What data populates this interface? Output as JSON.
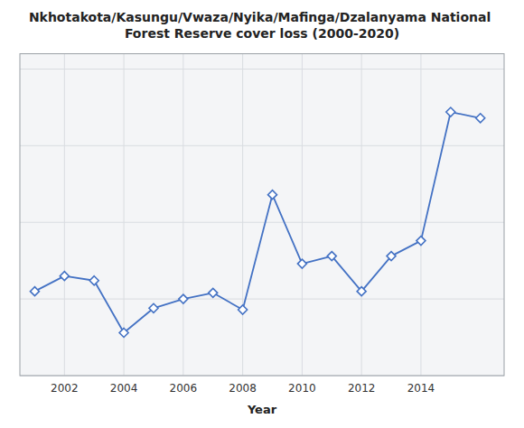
{
  "chart_data": {
    "type": "line",
    "title": "Nkhotakota/Kasungu/Vwaza/Nyika/Mafinga/Dzalanyama National Forest Reserve cover loss (2000-2020)",
    "xlabel": "Year",
    "x": [
      2001,
      2002,
      2003,
      2004,
      2005,
      2006,
      2007,
      2008,
      2009,
      2010,
      2011,
      2012,
      2013,
      2014,
      2015,
      2016
    ],
    "values": [
      55,
      65,
      62,
      28,
      44,
      50,
      54,
      43,
      118,
      73,
      78,
      55,
      78,
      88,
      172,
      168
    ],
    "color": "#4472C4",
    "marker": "diamond",
    "line_style": "solid",
    "xlim": [
      2000.5,
      2016.8
    ],
    "ylim": [
      0,
      210
    ],
    "xticks": [
      2002,
      2004,
      2006,
      2008,
      2010,
      2012,
      2014
    ],
    "yticks": [
      0,
      50,
      100,
      150,
      200
    ],
    "grid": true,
    "tick_labels": "x"
  }
}
